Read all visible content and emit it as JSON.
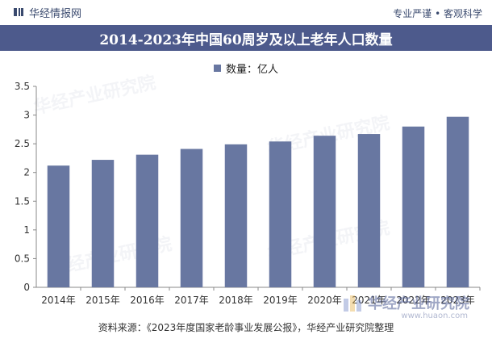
{
  "header": {
    "brand": "华经情报网",
    "tagline": "专业严谨 • 客观科学"
  },
  "colors": {
    "bar": "#6877a1",
    "title_bg": "#4d5a8c",
    "axis": "#888888"
  },
  "watermark": {
    "text": "华经产业研究院",
    "url": "www.huaon.com"
  },
  "source": "资料来源：《2023年度国家老龄事业发展公报》，华经产业研究院整理",
  "chart_data": {
    "type": "bar",
    "title": "2014-2023年中国60周岁及以上老年人口数量",
    "legend": "数量：亿人",
    "categories": [
      "2014年",
      "2015年",
      "2016年",
      "2017年",
      "2018年",
      "2019年",
      "2020年",
      "2021年",
      "2022年",
      "2023年"
    ],
    "values": [
      2.12,
      2.22,
      2.31,
      2.41,
      2.49,
      2.54,
      2.64,
      2.67,
      2.8,
      2.97
    ],
    "ylim": [
      0,
      3.5
    ],
    "yticks": [
      "0",
      "0.5",
      "1",
      "1.5",
      "2",
      "2.5",
      "3",
      "3.5"
    ],
    "ytick_values": [
      0,
      0.5,
      1,
      1.5,
      2,
      2.5,
      3,
      3.5
    ],
    "xlabel": "",
    "ylabel": ""
  }
}
